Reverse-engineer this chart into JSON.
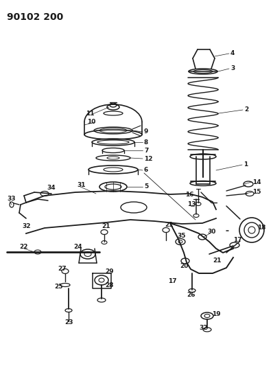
{
  "title": "90102 200",
  "bg_color": "#ffffff",
  "line_color": "#1a1a1a",
  "title_fontsize": 10,
  "label_fontsize": 6.5,
  "fig_width": 3.98,
  "fig_height": 5.33,
  "dpi": 100
}
